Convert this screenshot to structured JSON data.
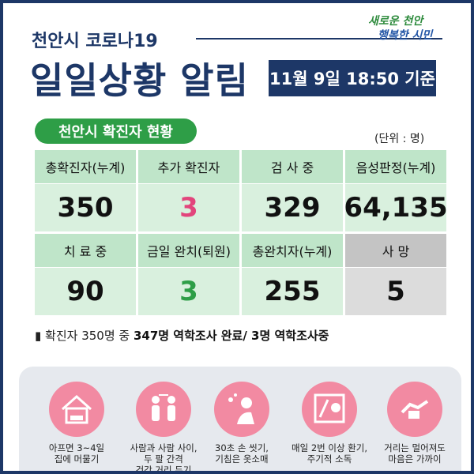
{
  "header": {
    "kicker": "천안시 코로나19",
    "title": "일일상황 알림",
    "date": "11월 9일 18:50 기준",
    "logo": [
      "새로운 천안",
      "행복한 시민"
    ]
  },
  "status": {
    "title": "천안시 확진자 현황",
    "unit": "(단위 : 명)",
    "rows": [
      [
        {
          "label": "총확진자(누계)",
          "value": "350"
        },
        {
          "label": "추가 확진자",
          "value": "3"
        },
        {
          "label": "검 사 중",
          "value": "329"
        },
        {
          "label": "음성판정(누계)",
          "value": "64,135"
        }
      ],
      [
        {
          "label": "치 료 중",
          "value": "90"
        },
        {
          "label": "금일 완치(퇴원)",
          "value": "3"
        },
        {
          "label": "총완치자(누계)",
          "value": "255"
        },
        {
          "label": "사 망",
          "value": "5"
        }
      ]
    ],
    "note": [
      "확진자 350명 중 ",
      "347명 역학조사 완료/ 3명 역학조사중"
    ]
  },
  "tips": [
    {
      "lines": [
        "아프면 3~4일",
        "집에 머물기"
      ]
    },
    {
      "lines": [
        "사람과 사람 사이,",
        "두 팔 간격",
        "건강 거리 두기"
      ]
    },
    {
      "lines": [
        "30초 손 씻기,",
        "기침은 옷소매"
      ]
    },
    {
      "lines": [
        "매일 2번 이상 환기,",
        "주기적 소독"
      ]
    },
    {
      "lines": [
        "거리는 멀어져도",
        "마음은 가까이"
      ]
    }
  ]
}
